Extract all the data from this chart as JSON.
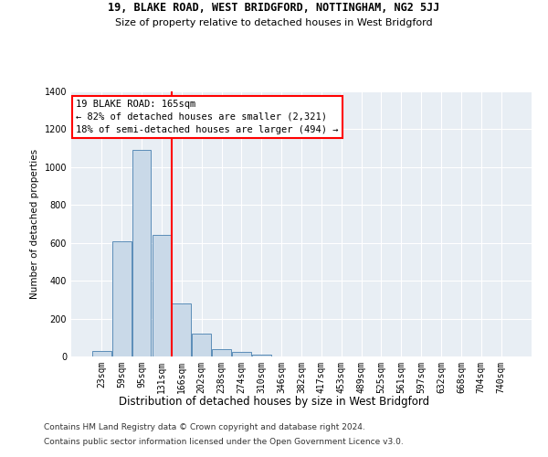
{
  "title1": "19, BLAKE ROAD, WEST BRIDGFORD, NOTTINGHAM, NG2 5JJ",
  "title2": "Size of property relative to detached houses in West Bridgford",
  "xlabel": "Distribution of detached houses by size in West Bridgford",
  "ylabel": "Number of detached properties",
  "footer1": "Contains HM Land Registry data © Crown copyright and database right 2024.",
  "footer2": "Contains public sector information licensed under the Open Government Licence v3.0.",
  "bar_labels": [
    "23sqm",
    "59sqm",
    "95sqm",
    "131sqm",
    "166sqm",
    "202sqm",
    "238sqm",
    "274sqm",
    "310sqm",
    "346sqm",
    "382sqm",
    "417sqm",
    "453sqm",
    "489sqm",
    "525sqm",
    "561sqm",
    "597sqm",
    "632sqm",
    "668sqm",
    "704sqm",
    "740sqm"
  ],
  "bar_values": [
    30,
    610,
    1090,
    640,
    280,
    120,
    40,
    25,
    10,
    0,
    0,
    0,
    0,
    0,
    0,
    0,
    0,
    0,
    0,
    0,
    0
  ],
  "bar_color": "#c9d9e8",
  "bar_edge_color": "#5b8db8",
  "annotation_line1": "19 BLAKE ROAD: 165sqm",
  "annotation_line2": "← 82% of detached houses are smaller (2,321)",
  "annotation_line3": "18% of semi-detached houses are larger (494) →",
  "annotation_box_color": "white",
  "annotation_box_edge": "red",
  "vline_color": "red",
  "vline_x": 3.5,
  "ylim": [
    0,
    1400
  ],
  "yticks": [
    0,
    200,
    400,
    600,
    800,
    1000,
    1200,
    1400
  ],
  "background_color": "#e8eef4",
  "grid_color": "white",
  "title1_fontsize": 8.5,
  "title2_fontsize": 8.0,
  "xlabel_fontsize": 8.5,
  "ylabel_fontsize": 7.5,
  "tick_fontsize": 7,
  "annotation_fontsize": 7.5,
  "footer_fontsize": 6.5
}
